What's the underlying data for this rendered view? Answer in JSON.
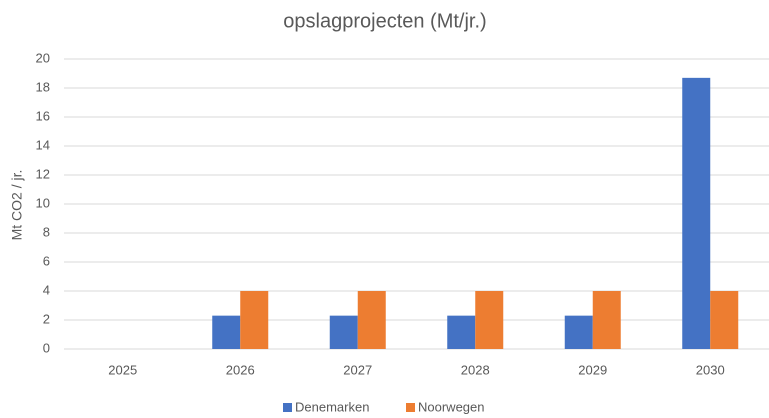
{
  "chart_data": {
    "type": "bar",
    "title": "opslagprojecten  (Mt/jr.)",
    "y_label": "Mt CO2 / jr.",
    "categories": [
      "2025",
      "2026",
      "2027",
      "2028",
      "2029",
      "2030"
    ],
    "series": [
      {
        "name": "Denemarken",
        "color": "#4472c4",
        "values": [
          0,
          2.3,
          2.3,
          2.3,
          2.3,
          18.7
        ]
      },
      {
        "name": "Noorwegen",
        "color": "#ed7d31",
        "values": [
          0,
          4,
          4,
          4,
          4,
          4
        ]
      }
    ],
    "ylim": [
      0,
      20
    ],
    "yticks": [
      0,
      2,
      4,
      6,
      8,
      10,
      12,
      14,
      16,
      18,
      20
    ],
    "grid": true,
    "legend": "bottom"
  }
}
